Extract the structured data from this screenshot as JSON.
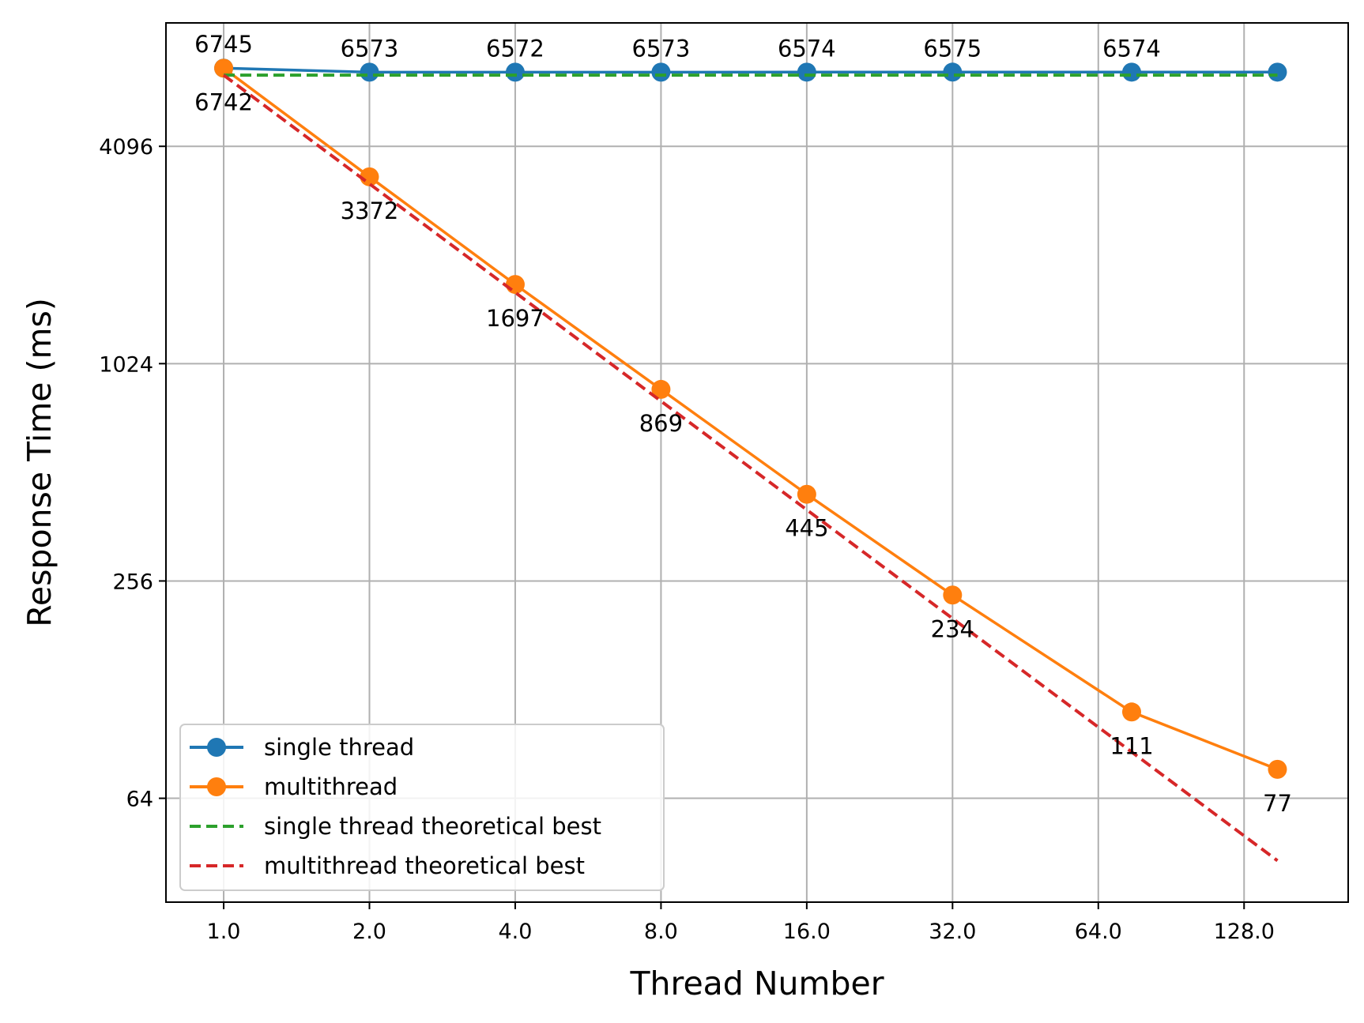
{
  "chart_data": {
    "type": "line",
    "xlabel": "Thread Number",
    "ylabel": "Response Time (ms)",
    "x_scale": "log2",
    "y_scale": "log2",
    "xlim": [
      0.76,
      210
    ],
    "ylim": [
      33,
      9000
    ],
    "x_ticks": [
      1,
      2,
      4,
      8,
      16,
      32,
      64,
      128
    ],
    "x_tick_labels": [
      "1.0",
      "2.0",
      "4.0",
      "8.0",
      "16.0",
      "32.0",
      "64.0",
      "128.0"
    ],
    "y_ticks": [
      64,
      256,
      1024,
      4096
    ],
    "y_tick_labels": [
      "64",
      "256",
      "1024",
      "4096"
    ],
    "grid": true,
    "legend_position": "lower-left",
    "series": [
      {
        "name": "single thread",
        "color": "#1f77b4",
        "style": "solid",
        "marker": "circle",
        "x": [
          1,
          2,
          4,
          8,
          16,
          32,
          75,
          150
        ],
        "values": [
          6745,
          6573,
          6572,
          6573,
          6574,
          6575,
          6574,
          6574
        ],
        "labels": [
          "6745",
          "6573",
          "6572",
          "6573",
          "6574",
          "6575",
          "6574",
          ""
        ],
        "label_position": "above"
      },
      {
        "name": "multithread",
        "color": "#ff7f0e",
        "style": "solid",
        "marker": "circle",
        "x": [
          1,
          2,
          4,
          8,
          16,
          32,
          75,
          150
        ],
        "values": [
          6742,
          3372,
          1697,
          869,
          445,
          234,
          111,
          77
        ],
        "labels": [
          "6742",
          "3372",
          "1697",
          "869",
          "445",
          "234",
          "111",
          "77"
        ],
        "label_position": "below"
      },
      {
        "name": "single thread theoretical best",
        "color": "#2ca02c",
        "style": "dashed",
        "marker": "none",
        "x": [
          1,
          150
        ],
        "values": [
          6450,
          6450
        ]
      },
      {
        "name": "multithread theoretical best",
        "color": "#d62728",
        "style": "dashed",
        "marker": "none",
        "x": [
          1,
          150
        ],
        "values": [
          6450,
          43
        ]
      }
    ]
  }
}
